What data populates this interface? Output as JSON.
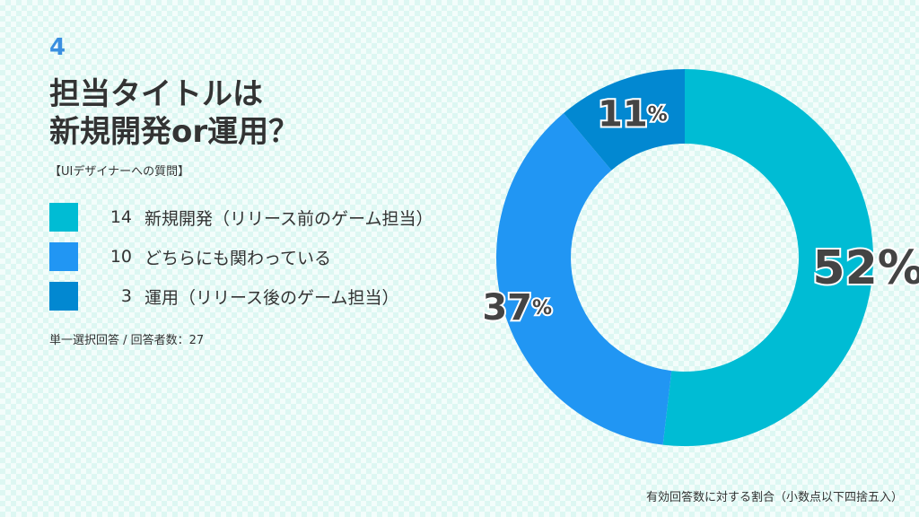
{
  "header": {
    "question_number": "4",
    "title_line1": "担当タイトルは",
    "title_line2": "新規開発or運用？",
    "subtitle": "【UIデザイナーへの質問】"
  },
  "note": "単一選択回答 / 回答者数：27",
  "footnote": "有効回答数に対する割合（小数点以下四捨五入）",
  "colors": {
    "series1": "#00bcd4",
    "series2": "#2196f3",
    "series3": "#0288d1"
  },
  "chart_data": {
    "type": "pie",
    "donut": true,
    "title": "担当タイトルは新規開発or運用？",
    "categories": [
      "新規開発（リリース前のゲーム担当）",
      "どちらにも関わっている",
      "運用（リリース後のゲーム担当）"
    ],
    "counts": [
      14,
      10,
      3
    ],
    "counts_label": [
      "14",
      "10",
      "3"
    ],
    "percent": [
      52,
      37,
      11
    ],
    "percent_label": [
      "52",
      "37",
      "11"
    ],
    "percent_unit": "%",
    "total_respondents": 27,
    "legend_position": "left"
  }
}
